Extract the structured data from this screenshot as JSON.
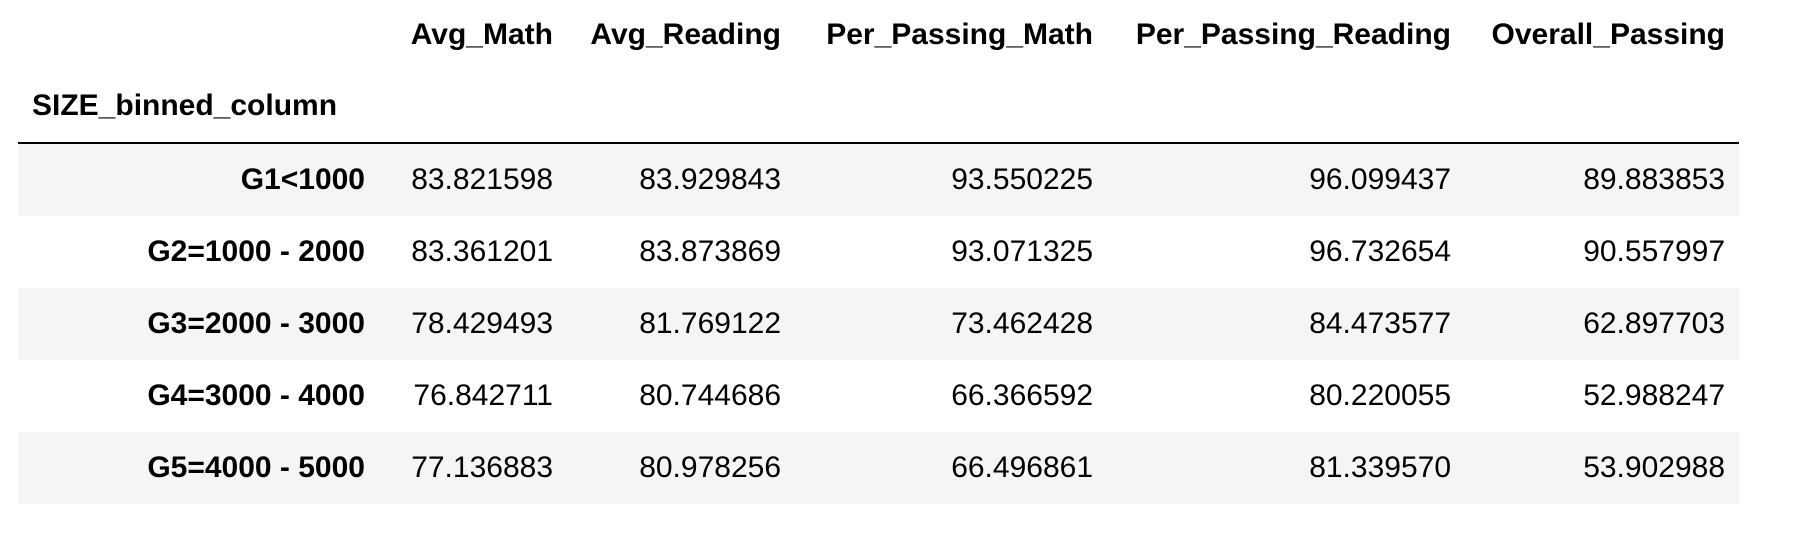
{
  "table": {
    "index_name": "SIZE_binned_column",
    "columns": [
      "Avg_Math",
      "Avg_Reading",
      "Per_Passing_Math",
      "Per_Passing_Reading",
      "Overall_Passing"
    ],
    "rows": [
      {
        "label": "G1<1000",
        "values": [
          "83.821598",
          "83.929843",
          "93.550225",
          "96.099437",
          "89.883853"
        ]
      },
      {
        "label": "G2=1000 - 2000",
        "values": [
          "83.361201",
          "83.873869",
          "93.071325",
          "96.732654",
          "90.557997"
        ]
      },
      {
        "label": "G3=2000 - 3000",
        "values": [
          "78.429493",
          "81.769122",
          "73.462428",
          "84.473577",
          "62.897703"
        ]
      },
      {
        "label": "G4=3000 - 4000",
        "values": [
          "76.842711",
          "80.744686",
          "66.366592",
          "80.220055",
          "52.988247"
        ]
      },
      {
        "label": "G5=4000 - 5000",
        "values": [
          "77.136883",
          "80.978256",
          "66.496861",
          "81.339570",
          "53.902988"
        ]
      }
    ]
  }
}
